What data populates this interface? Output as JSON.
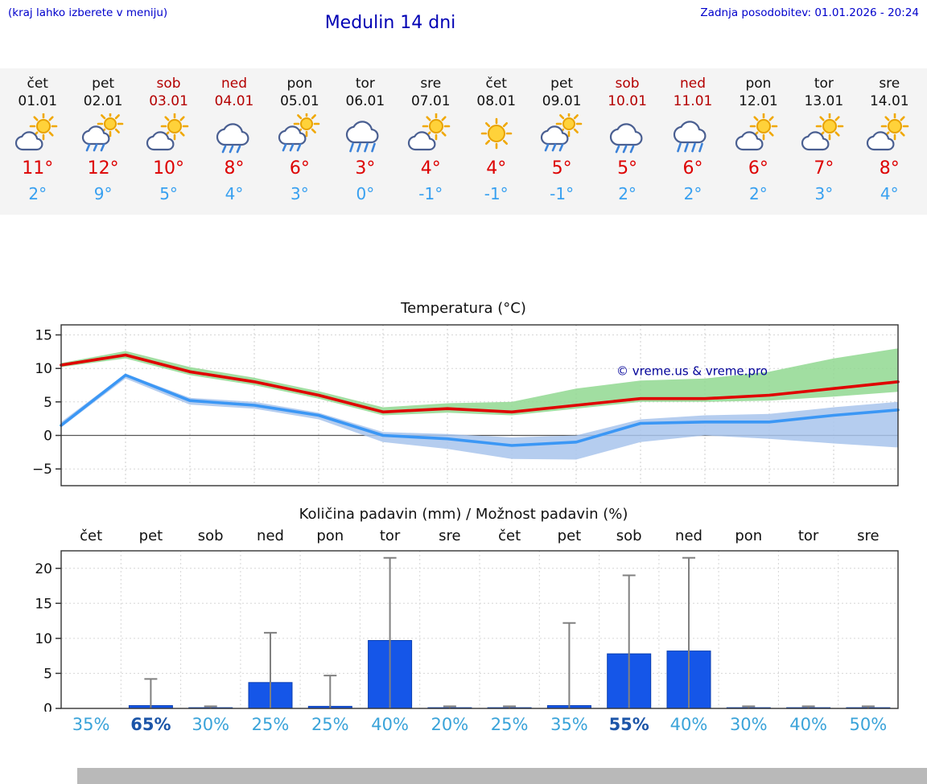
{
  "header": {
    "hint": "(kraj lahko izberete v meniju)",
    "title": "Medulin 14 dni",
    "last_update": "Zadnja posodobitev: 01.01.2026 - 20:24"
  },
  "colors": {
    "accent_blue": "#0000cc",
    "weekend_red": "#b40000",
    "tmax_red": "#dd0000",
    "tmin_blue": "#38a0f0",
    "line_red": "#e00000",
    "line_blue": "#3b97f5",
    "band_green": "#90d890",
    "band_blue": "#a8c4ec",
    "bar_blue": "#1556e8",
    "whisker_gray": "#808080",
    "percent_light": "#3aa3d9",
    "percent_dark": "#1c55a8",
    "watermark_navy": "#000099"
  },
  "days": [
    {
      "name": "čet",
      "date": "01.01",
      "weekend": false,
      "icon": "partly",
      "tmax": "11°",
      "tmin": "2°"
    },
    {
      "name": "pet",
      "date": "02.01",
      "weekend": false,
      "icon": "sun-rain",
      "tmax": "12°",
      "tmin": "9°"
    },
    {
      "name": "sob",
      "date": "03.01",
      "weekend": true,
      "icon": "partly",
      "tmax": "10°",
      "tmin": "5°"
    },
    {
      "name": "ned",
      "date": "04.01",
      "weekend": true,
      "icon": "rain",
      "tmax": "8°",
      "tmin": "4°"
    },
    {
      "name": "pon",
      "date": "05.01",
      "weekend": false,
      "icon": "sun-rain",
      "tmax": "6°",
      "tmin": "3°"
    },
    {
      "name": "tor",
      "date": "06.01",
      "weekend": false,
      "icon": "heavy-rain",
      "tmax": "3°",
      "tmin": "0°"
    },
    {
      "name": "sre",
      "date": "07.01",
      "weekend": false,
      "icon": "partly",
      "tmax": "4°",
      "tmin": "-1°"
    },
    {
      "name": "čet",
      "date": "08.01",
      "weekend": false,
      "icon": "sunny",
      "tmax": "4°",
      "tmin": "-1°"
    },
    {
      "name": "pet",
      "date": "09.01",
      "weekend": false,
      "icon": "sun-rain",
      "tmax": "5°",
      "tmin": "-1°"
    },
    {
      "name": "sob",
      "date": "10.01",
      "weekend": true,
      "icon": "rain",
      "tmax": "5°",
      "tmin": "2°"
    },
    {
      "name": "ned",
      "date": "11.01",
      "weekend": true,
      "icon": "heavy-rain",
      "tmax": "6°",
      "tmin": "2°"
    },
    {
      "name": "pon",
      "date": "12.01",
      "weekend": false,
      "icon": "partly",
      "tmax": "6°",
      "tmin": "2°"
    },
    {
      "name": "tor",
      "date": "13.01",
      "weekend": false,
      "icon": "partly",
      "tmax": "7°",
      "tmin": "3°"
    },
    {
      "name": "sre",
      "date": "14.01",
      "weekend": false,
      "icon": "partly",
      "tmax": "8°",
      "tmin": "4°"
    }
  ],
  "chart_data": [
    {
      "type": "line",
      "title": "Temperatura (°C)",
      "x_count": 14,
      "ylim": [
        -7.5,
        16.5
      ],
      "yticks": [
        -5,
        0,
        5,
        10,
        15
      ],
      "grid": true,
      "watermark": "© vreme.us & vreme.pro",
      "series": [
        {
          "name": "max temperature",
          "color": "#e00000",
          "values": [
            10.5,
            12,
            9.5,
            8,
            6,
            3.5,
            4,
            3.5,
            4.5,
            5.5,
            5.5,
            6,
            7,
            8
          ]
        },
        {
          "name": "min temperature",
          "color": "#3b97f5",
          "values": [
            1.5,
            9,
            5.2,
            4.5,
            3,
            0,
            -0.5,
            -1.5,
            -1,
            1.8,
            2,
            2,
            3,
            3.8
          ]
        }
      ],
      "bands": [
        {
          "name": "max temperature range",
          "color": "#90d890",
          "upper": [
            10.8,
            12.6,
            10.2,
            8.6,
            6.6,
            4.2,
            4.8,
            5.0,
            7.0,
            8.2,
            8.5,
            9.5,
            11.5,
            13.0
          ],
          "lower": [
            10.2,
            11.5,
            9.0,
            7.5,
            5.5,
            3.0,
            3.4,
            3.0,
            4.0,
            5.0,
            5.0,
            5.2,
            5.8,
            6.5
          ]
        },
        {
          "name": "min temperature range",
          "color": "#a8c4ec",
          "upper": [
            2.0,
            9.2,
            5.6,
            5.0,
            3.4,
            0.5,
            0.2,
            -0.3,
            0.0,
            2.4,
            3.0,
            3.2,
            4.2,
            5.0
          ],
          "lower": [
            1.2,
            8.5,
            4.6,
            4.0,
            2.4,
            -1.0,
            -2.0,
            -3.5,
            -3.6,
            -1.0,
            0.0,
            -0.5,
            -1.2,
            -1.8
          ]
        }
      ]
    },
    {
      "type": "bar",
      "title": "Količina padavin (mm) / Možnost padavin (%)",
      "categories": [
        "čet",
        "pet",
        "sob",
        "ned",
        "pon",
        "tor",
        "sre",
        "čet",
        "pet",
        "sob",
        "ned",
        "pon",
        "tor",
        "sre"
      ],
      "ylim": [
        0,
        22.5
      ],
      "yticks": [
        0,
        5,
        10,
        15,
        20
      ],
      "grid": true,
      "bars_mm": [
        0,
        0.4,
        0.1,
        3.7,
        0.3,
        9.7,
        0.1,
        0.1,
        0.4,
        7.8,
        8.2,
        0.1,
        0.1,
        0.1
      ],
      "whisker_max_mm": [
        0,
        4.2,
        0.3,
        10.8,
        4.7,
        21.5,
        0.3,
        0.3,
        12.2,
        19,
        21.5,
        0.3,
        0.3,
        0.3
      ],
      "probability_pct": [
        35,
        65,
        30,
        25,
        25,
        40,
        20,
        25,
        35,
        55,
        40,
        30,
        40,
        50
      ],
      "probability_labels": [
        "35%",
        "65%",
        "30%",
        "25%",
        "25%",
        "40%",
        "20%",
        "25%",
        "35%",
        "55%",
        "40%",
        "30%",
        "40%",
        "50%"
      ],
      "probability_emphasis": [
        false,
        true,
        false,
        false,
        false,
        false,
        false,
        false,
        false,
        true,
        false,
        false,
        false,
        false
      ]
    }
  ]
}
